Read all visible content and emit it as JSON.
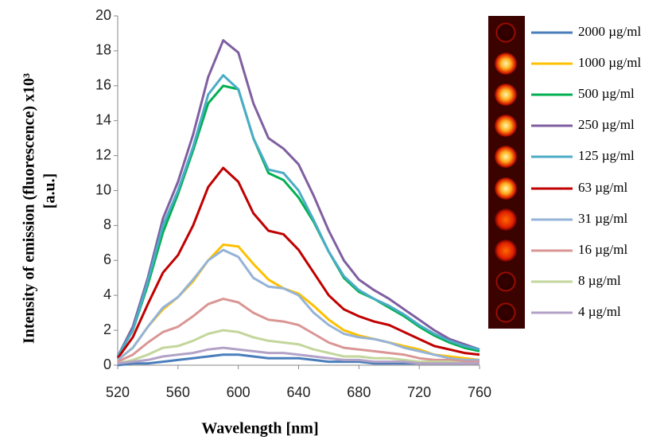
{
  "chart_data": {
    "type": "line",
    "x_label": "Wavelength [nm]",
    "y_label": [
      "Intensity of emission (fluorescence) x10³",
      "[a.u.]"
    ],
    "x": [
      520,
      530,
      540,
      550,
      560,
      570,
      580,
      590,
      600,
      610,
      620,
      630,
      640,
      650,
      660,
      670,
      680,
      690,
      700,
      710,
      720,
      730,
      740,
      750,
      760
    ],
    "xlim": [
      520,
      760
    ],
    "xticks": [
      520,
      560,
      600,
      640,
      680,
      720,
      760
    ],
    "ylim": [
      0,
      20
    ],
    "yticks": [
      0,
      2,
      4,
      6,
      8,
      10,
      12,
      14,
      16,
      18,
      20
    ],
    "series": [
      {
        "name": "2000 µg/ml",
        "color": "#4a7ebb",
        "values": [
          0,
          0.1,
          0.1,
          0.2,
          0.3,
          0.4,
          0.5,
          0.6,
          0.6,
          0.5,
          0.4,
          0.4,
          0.4,
          0.3,
          0.2,
          0.2,
          0.2,
          0.1,
          0.1,
          0.1,
          0.1,
          0.1,
          0.1,
          0.1,
          0.1
        ]
      },
      {
        "name": "1000 µg/ml",
        "color": "#ffc000",
        "values": [
          0.3,
          1.0,
          2.2,
          3.2,
          3.9,
          4.8,
          6.0,
          6.9,
          6.8,
          5.8,
          4.9,
          4.4,
          4.1,
          3.4,
          2.6,
          2.0,
          1.7,
          1.5,
          1.3,
          1.1,
          0.9,
          0.6,
          0.5,
          0.4,
          0.3
        ]
      },
      {
        "name": "500 µg/ml",
        "color": "#00b050",
        "values": [
          0.5,
          2.0,
          4.6,
          7.6,
          9.8,
          12.3,
          15.0,
          16.0,
          15.8,
          13.0,
          11.0,
          10.6,
          9.6,
          8.2,
          6.5,
          5.0,
          4.2,
          3.8,
          3.3,
          2.8,
          2.2,
          1.7,
          1.3,
          1.0,
          0.8
        ]
      },
      {
        "name": "250 µg/ml",
        "color": "#7f5fa0",
        "values": [
          0.5,
          2.2,
          5.0,
          8.4,
          10.5,
          13.2,
          16.5,
          18.6,
          17.9,
          15.0,
          13.0,
          12.4,
          11.5,
          9.7,
          7.7,
          6.0,
          4.9,
          4.3,
          3.8,
          3.2,
          2.6,
          2.0,
          1.5,
          1.2,
          0.9
        ]
      },
      {
        "name": "125 µg/ml",
        "color": "#4bacc6",
        "values": [
          0.5,
          2.0,
          4.8,
          8.0,
          10.0,
          12.5,
          15.5,
          16.6,
          15.8,
          13.0,
          11.2,
          11.0,
          10.0,
          8.3,
          6.5,
          5.1,
          4.3,
          3.8,
          3.4,
          2.9,
          2.3,
          1.8,
          1.4,
          1.1,
          0.9
        ]
      },
      {
        "name": "63 µg/ml",
        "color": "#c00000",
        "values": [
          0.4,
          1.6,
          3.5,
          5.3,
          6.3,
          8.0,
          10.2,
          11.3,
          10.5,
          8.7,
          7.7,
          7.5,
          6.6,
          5.3,
          4.0,
          3.2,
          2.8,
          2.5,
          2.3,
          1.9,
          1.5,
          1.1,
          0.9,
          0.7,
          0.6
        ]
      },
      {
        "name": "31 µg/ml",
        "color": "#95b3d7",
        "values": [
          0.3,
          1.0,
          2.2,
          3.3,
          3.9,
          4.9,
          6.0,
          6.6,
          6.2,
          5.0,
          4.5,
          4.4,
          4.0,
          3.0,
          2.3,
          1.8,
          1.6,
          1.5,
          1.3,
          1.0,
          0.8,
          0.6,
          0.4,
          0.3,
          0.3
        ]
      },
      {
        "name": "16 µg/ml",
        "color": "#d99694",
        "values": [
          0.2,
          0.6,
          1.3,
          1.9,
          2.2,
          2.8,
          3.5,
          3.8,
          3.6,
          3.0,
          2.6,
          2.5,
          2.3,
          1.8,
          1.3,
          1.0,
          0.9,
          0.8,
          0.7,
          0.6,
          0.4,
          0.3,
          0.3,
          0.2,
          0.2
        ]
      },
      {
        "name": "8 µg/ml",
        "color": "#c3d69b",
        "values": [
          0.1,
          0.3,
          0.6,
          1.0,
          1.1,
          1.4,
          1.8,
          2.0,
          1.9,
          1.6,
          1.4,
          1.3,
          1.2,
          0.9,
          0.7,
          0.5,
          0.5,
          0.4,
          0.4,
          0.3,
          0.2,
          0.2,
          0.2,
          0.1,
          0.1
        ]
      },
      {
        "name": "4 µg/ml",
        "color": "#b3a2c7",
        "values": [
          0.1,
          0.2,
          0.3,
          0.5,
          0.6,
          0.7,
          0.9,
          1.0,
          0.9,
          0.8,
          0.7,
          0.7,
          0.6,
          0.5,
          0.4,
          0.3,
          0.3,
          0.2,
          0.2,
          0.2,
          0.1,
          0.1,
          0.1,
          0.1,
          0.1
        ]
      }
    ]
  }
}
